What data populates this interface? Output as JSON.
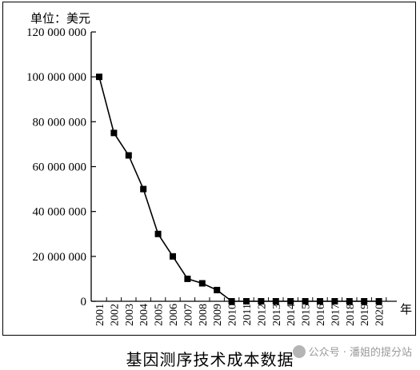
{
  "caption": "基因测序技术成本数据",
  "watermark": {
    "icon": "wechat-icon",
    "text": "公众号 · 潘姐的提分站"
  },
  "chart_data": {
    "type": "line",
    "title": "",
    "ylabel": "单位：美元",
    "xlabel": "年",
    "categories": [
      "2001",
      "2002",
      "2003",
      "2004",
      "2005",
      "2006",
      "2007",
      "2008",
      "2009",
      "2010",
      "2011",
      "2012",
      "2013",
      "2014",
      "2015",
      "2016",
      "2017",
      "2018",
      "2019",
      "2020"
    ],
    "series": [
      {
        "values": [
          100000000,
          75000000,
          65000000,
          50000000,
          30000000,
          20000000,
          10000000,
          8000000,
          5000000,
          0,
          0,
          0,
          0,
          0,
          0,
          0,
          0,
          0,
          0,
          0
        ]
      }
    ],
    "ylim": [
      0,
      120000000
    ],
    "yticks": [
      0,
      20000000,
      40000000,
      60000000,
      80000000,
      100000000,
      120000000
    ],
    "ytick_labels": [
      "0",
      "20 000 000",
      "40 000 000",
      "60 000 000",
      "80 000 000",
      "100 000 000",
      "120 000 000"
    ],
    "marker": "square",
    "line_color": "#000000",
    "grid": false,
    "legend": "none"
  }
}
